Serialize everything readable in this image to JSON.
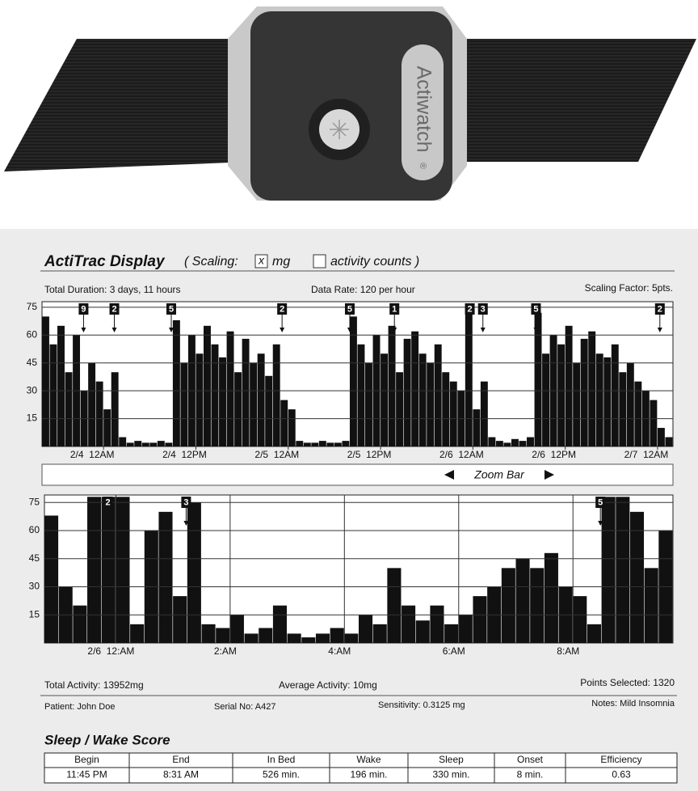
{
  "device": {
    "logo": "Actiwatch",
    "registered": "®"
  },
  "header": {
    "title": "ActiTrac Display",
    "scaling": "( Scaling:",
    "options": [
      {
        "mark": "x",
        "label": "mg",
        "checked": true
      },
      {
        "label": "activity counts )",
        "checked": false
      }
    ]
  },
  "info": {
    "duration": "Total Duration:  3 days, 11 hours",
    "rate": "Data Rate:  120 per hour",
    "factor": "Scaling Factor:  5pts."
  },
  "chart_data": [
    {
      "type": "bar",
      "color": "#111111",
      "grid": true,
      "x": [
        0,
        1,
        2,
        3,
        4,
        5,
        6,
        7,
        8,
        9,
        10,
        11,
        12,
        13,
        14,
        15,
        16,
        17,
        18,
        19,
        20,
        21,
        22,
        23,
        24,
        25,
        26,
        27,
        28,
        29,
        30,
        31,
        32,
        33,
        34,
        35,
        36,
        37,
        38,
        39,
        40,
        41,
        42,
        43,
        44,
        45,
        46,
        47,
        48,
        49,
        50,
        51,
        52,
        53,
        54,
        55,
        56,
        57,
        58,
        59,
        60,
        61,
        62,
        63,
        64,
        65,
        66,
        67,
        68,
        69,
        70,
        71,
        72,
        73,
        74,
        75,
        76,
        77,
        78,
        79,
        80,
        81
      ],
      "values": [
        70,
        55,
        65,
        40,
        60,
        30,
        45,
        35,
        20,
        40,
        5,
        2,
        3,
        2,
        2,
        3,
        2,
        68,
        45,
        60,
        50,
        65,
        55,
        48,
        62,
        40,
        58,
        45,
        50,
        38,
        55,
        25,
        20,
        3,
        2,
        2,
        3,
        2,
        2,
        3,
        70,
        55,
        45,
        60,
        50,
        65,
        40,
        58,
        62,
        50,
        45,
        55,
        40,
        35,
        30,
        75,
        20,
        35,
        5,
        3,
        2,
        4,
        3,
        5,
        72,
        50,
        60,
        55,
        65,
        45,
        58,
        62,
        50,
        48,
        55,
        40,
        45,
        35,
        30,
        25,
        10,
        5
      ],
      "xlim": [
        0,
        82
      ],
      "ylim": [
        0,
        78
      ],
      "yticks": [
        15,
        30,
        45,
        60,
        75
      ],
      "xticks": [
        {
          "value": 8,
          "label": "2/4  12AM"
        },
        {
          "value": 20,
          "label": "2/4  12PM"
        },
        {
          "value": 32,
          "label": "2/5  12AM"
        },
        {
          "value": 44,
          "label": "2/5  12PM"
        },
        {
          "value": 56,
          "label": "2/6  12AM"
        },
        {
          "value": 68,
          "label": "2/6  12PM"
        },
        {
          "value": 80,
          "label": "2/7  12AM"
        }
      ],
      "markers": [
        {
          "label": "9",
          "x": 5.4
        },
        {
          "label": "2",
          "x": 9.4
        },
        {
          "label": "5",
          "x": 16.8
        },
        {
          "label": "2",
          "x": 31.2
        },
        {
          "label": "5",
          "x": 40
        },
        {
          "label": "1",
          "x": 45.8
        },
        {
          "label": "2",
          "x": 55.6
        },
        {
          "label": "3",
          "x": 57.3
        },
        {
          "label": "5",
          "x": 64.2
        },
        {
          "label": "2",
          "x": 80.3
        }
      ]
    },
    {
      "type": "bar",
      "color": "#111111",
      "grid": true,
      "x": [
        -1.25,
        -1,
        -0.75,
        -0.5,
        -0.25,
        0,
        0.25,
        0.5,
        0.75,
        1,
        1.25,
        1.5,
        1.75,
        2,
        2.25,
        2.5,
        2.75,
        3,
        3.25,
        3.5,
        3.75,
        4,
        4.25,
        4.5,
        4.75,
        5,
        5.25,
        5.5,
        5.75,
        6,
        6.25,
        6.5,
        6.75,
        7,
        7.25,
        7.5,
        7.75,
        8,
        8.25,
        8.5,
        8.75,
        9,
        9.25,
        9.5
      ],
      "values": [
        68,
        30,
        20,
        78,
        78,
        78,
        10,
        60,
        70,
        25,
        75,
        10,
        8,
        15,
        5,
        8,
        20,
        5,
        3,
        5,
        8,
        5,
        15,
        10,
        40,
        20,
        12,
        20,
        10,
        15,
        25,
        30,
        40,
        45,
        40,
        48,
        30,
        25,
        10,
        78,
        78,
        70,
        40,
        60
      ],
      "xlim": [
        -1.25,
        9.75
      ],
      "ylim": [
        0,
        79
      ],
      "yticks": [
        15,
        30,
        45,
        60,
        75
      ],
      "xticks": [
        {
          "value": 0,
          "label": "2/6  12:AM"
        },
        {
          "value": 2,
          "label": "2:AM"
        },
        {
          "value": 4,
          "label": "4:AM"
        },
        {
          "value": 6,
          "label": "6:AM"
        },
        {
          "value": 8,
          "label": "8:AM"
        }
      ],
      "markers": [
        {
          "label": "2",
          "x": -0.14
        },
        {
          "label": "3",
          "x": 1.23
        },
        {
          "label": "5",
          "x": 8.48
        }
      ]
    }
  ],
  "zoom_bar": "Zoom Bar",
  "stats": {
    "total": "Total Activity:  13952mg",
    "average": "Average Activity:  10mg",
    "points": "Points Selected:  1320"
  },
  "patient": {
    "name": "Patient:  John Doe",
    "serial": "Serial No:  A427",
    "sensitivity": "Sensitivity:  0.3125 mg",
    "notes": "Notes:  Mild Insomnia"
  },
  "score": {
    "title": "Sleep / Wake Score",
    "columns": [
      "Begin",
      "End",
      "In Bed",
      "Wake",
      "Sleep",
      "Onset",
      "Efficiency"
    ],
    "rows": [
      [
        "11:45 PM",
        "8:31 AM",
        "526 min.",
        "196 min.",
        "330 min.",
        "8 min.",
        "0.63"
      ]
    ]
  }
}
